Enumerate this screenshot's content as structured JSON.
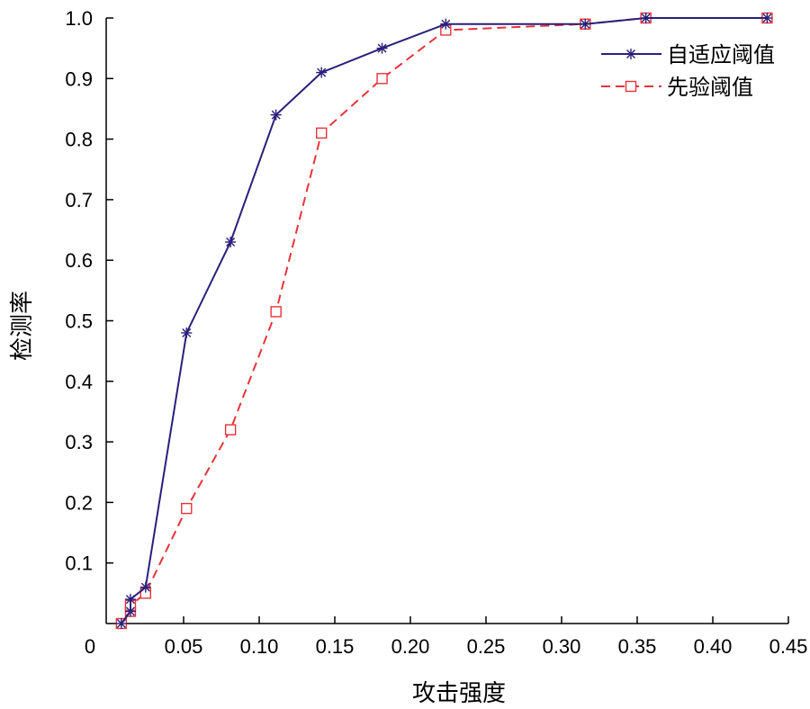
{
  "chart_data": {
    "type": "line",
    "xlabel": "攻击强度",
    "ylabel": "检测率",
    "xlim": [
      0,
      0.45
    ],
    "ylim": [
      0,
      1.0
    ],
    "x_ticks": [
      "0",
      "0.05",
      "0.10",
      "0.15",
      "0.20",
      "0.25",
      "0.30",
      "0.35",
      "0.40",
      "0.45"
    ],
    "y_ticks": [
      "0.1",
      "0.2",
      "0.3",
      "0.4",
      "0.5",
      "0.6",
      "0.7",
      "0.8",
      "0.9",
      "1.0"
    ],
    "grid": false,
    "legend_position": "top-right",
    "series": [
      {
        "name": "自适应阈值",
        "color": "#2a1f7a",
        "marker": "asterisk",
        "line_style": "solid",
        "x": [
          0.01,
          0.016,
          0.016,
          0.026,
          0.053,
          0.082,
          0.112,
          0.142,
          0.182,
          0.224,
          0.316,
          0.356,
          0.436
        ],
        "y": [
          0.0,
          0.02,
          0.04,
          0.06,
          0.48,
          0.63,
          0.84,
          0.91,
          0.95,
          0.99,
          0.99,
          1.0,
          1.0
        ]
      },
      {
        "name": "先验阈值",
        "color": "#e8333a",
        "marker": "square",
        "line_style": "dashed",
        "x": [
          0.01,
          0.016,
          0.016,
          0.026,
          0.053,
          0.082,
          0.112,
          0.142,
          0.182,
          0.224,
          0.316,
          0.356,
          0.436
        ],
        "y": [
          0.0,
          0.02,
          0.03,
          0.05,
          0.19,
          0.32,
          0.515,
          0.81,
          0.9,
          0.98,
          0.99,
          1.0,
          1.0
        ]
      }
    ]
  }
}
